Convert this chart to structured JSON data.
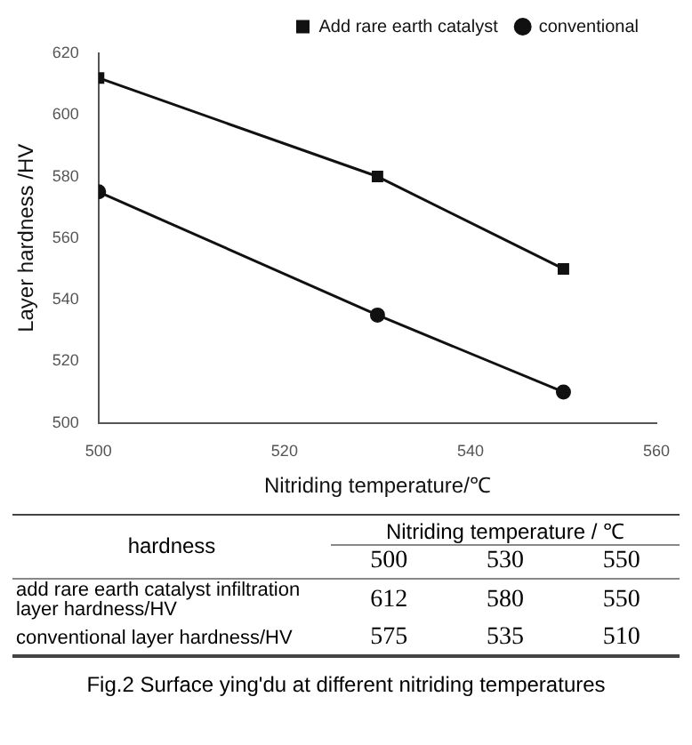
{
  "chart_data": [
    {
      "type": "line",
      "title": "Fig.2 Surface ying'du at different nitriding temperatures",
      "xlabel": "Nitriding temperature/℃",
      "ylabel": "Layer hardness /HV",
      "x": [
        500,
        530,
        550
      ],
      "series": [
        {
          "name": "Add rare earth catalyst",
          "color": "#111111",
          "marker": "square",
          "values": [
            612,
            580,
            550
          ]
        },
        {
          "name": "conventional",
          "color": "#111111",
          "marker": "circle",
          "values": [
            575,
            535,
            510
          ]
        }
      ],
      "xlim": [
        500,
        560
      ],
      "xticks": [
        500,
        520,
        540,
        560
      ],
      "ylim": [
        500,
        620
      ],
      "yticks": [
        500,
        520,
        540,
        560,
        580,
        600,
        620
      ],
      "grid": false,
      "legend": "top right",
      "line_style": "solid"
    },
    {
      "type": "other",
      "xlabel": "Nitriding temperature / ℃",
      "ylabel": "hardness",
      "categories": [
        "500",
        "530",
        "550"
      ],
      "data_labels": true,
      "series": [
        {
          "name": "add rare earth catalyst infiltration layer hardness/HV",
          "values": [
            612,
            580,
            550
          ]
        },
        {
          "name": "conventional layer hardness/HV",
          "values": [
            575,
            535,
            510
          ]
        }
      ]
    }
  ]
}
